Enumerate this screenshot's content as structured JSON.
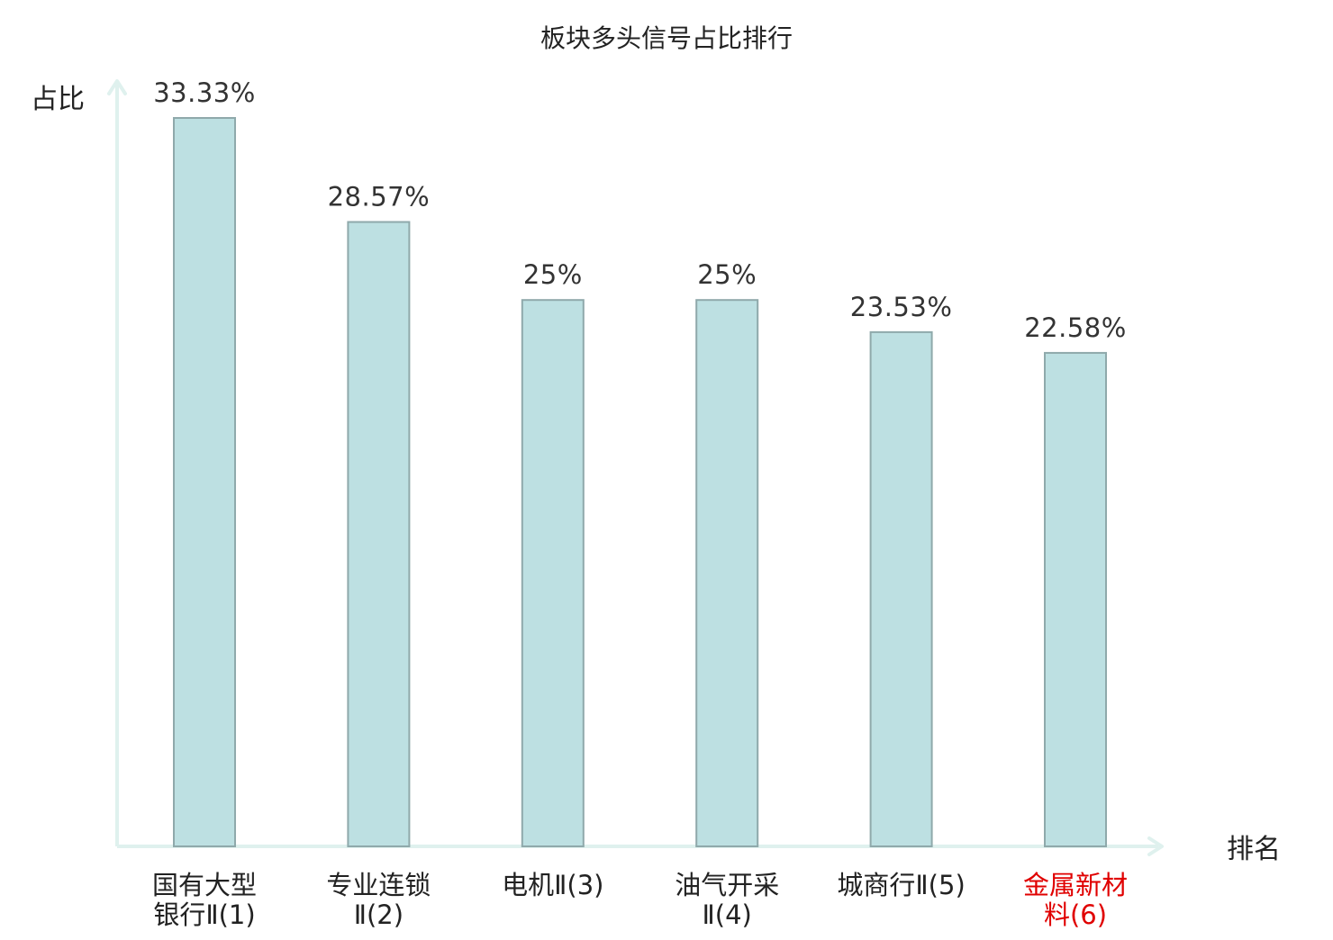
{
  "chart_data": {
    "type": "bar",
    "title": "板块多头信号占比排行",
    "ylabel": "占比",
    "xlabel": "排名",
    "categories": [
      [
        "国有大型",
        "银行Ⅱ(1)"
      ],
      [
        "专业连锁",
        "Ⅱ(2)"
      ],
      [
        "电机Ⅱ(3)"
      ],
      [
        "油气开采",
        "Ⅱ(4)"
      ],
      [
        "城商行Ⅱ(5)"
      ],
      [
        "金属新材",
        "料(6)"
      ]
    ],
    "values": [
      33.33,
      28.57,
      25,
      25,
      23.53,
      22.58
    ],
    "value_labels": [
      "33.33%",
      "28.57%",
      "25%",
      "25%",
      "23.53%",
      "22.58%"
    ],
    "highlight_index": 5,
    "grid": false,
    "colors": {
      "bar_fill": "#bde0e2",
      "bar_stroke": "#8fa9ab",
      "axis": "#dff1ee",
      "text": "#333333",
      "highlight_text": "#e00000"
    }
  }
}
